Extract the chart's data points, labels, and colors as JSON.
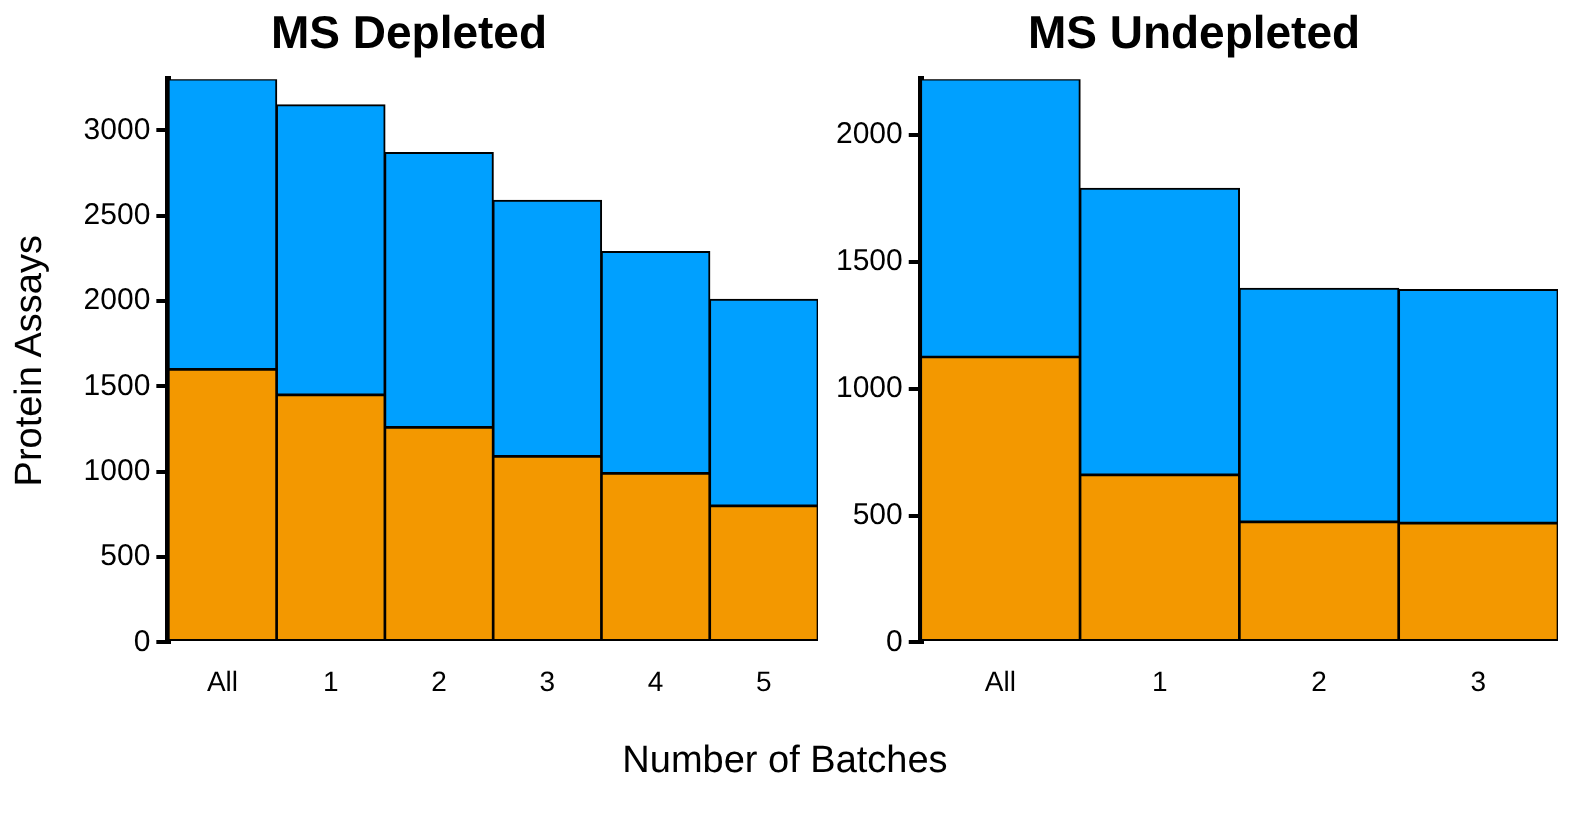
{
  "chart_data": [
    {
      "type": "bar",
      "title": "MS Depleted",
      "ylabel": "Protein Assays",
      "xlabel": "Number of Batches",
      "stacked": true,
      "categories": [
        "All",
        "1",
        "2",
        "3",
        "4",
        "5"
      ],
      "ylim": [
        0,
        3300
      ],
      "yticks": [
        0,
        500,
        1000,
        1500,
        2000,
        2500,
        3000
      ],
      "grid": false,
      "legend": false,
      "series": [
        {
          "color": "#f39800",
          "values": [
            1600,
            1450,
            1260,
            1090,
            990,
            800
          ]
        },
        {
          "color": "#00a0ff",
          "values": [
            1700,
            1700,
            1610,
            1500,
            1300,
            1210
          ]
        }
      ]
    },
    {
      "type": "bar",
      "title": "MS Undepleted",
      "stacked": true,
      "categories": [
        "All",
        "1",
        "2",
        "3"
      ],
      "ylim": [
        0,
        2220
      ],
      "yticks": [
        0,
        500,
        1000,
        1500,
        2000
      ],
      "grid": false,
      "legend": false,
      "series": [
        {
          "color": "#f39800",
          "values": [
            1125,
            660,
            475,
            470
          ]
        },
        {
          "color": "#00a0ff",
          "values": [
            1095,
            1130,
            920,
            920
          ]
        }
      ]
    }
  ]
}
